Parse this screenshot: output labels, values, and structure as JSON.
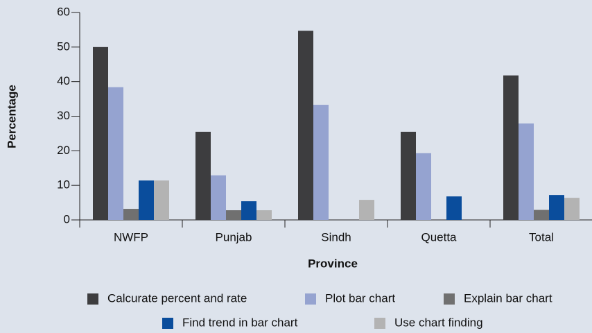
{
  "chart_data": {
    "type": "bar",
    "x_label": "Province",
    "y_label": "Percentage",
    "categories": [
      "NWFP",
      "Punjab",
      "Sindh",
      "Quetta",
      "Total"
    ],
    "series": [
      {
        "name": "Calcurate percent and rate",
        "color": "#3d3d3f",
        "values": [
          50,
          25.5,
          54.7,
          25.5,
          41.8
        ]
      },
      {
        "name": "Plot bar chart",
        "color": "#95a3d0",
        "values": [
          38.4,
          12.9,
          33.3,
          19.3,
          27.9
        ]
      },
      {
        "name": "Explain bar chart",
        "color": "#707070",
        "values": [
          3.2,
          2.8,
          0,
          0,
          2.9
        ]
      },
      {
        "name": "Find trend in bar chart",
        "color": "#0a4d9c",
        "values": [
          11.4,
          5.4,
          0,
          6.8,
          7.2
        ]
      },
      {
        "name": "Use chart finding",
        "color": "#b3b3b3",
        "values": [
          11.4,
          2.8,
          5.8,
          0,
          6.4
        ]
      }
    ],
    "ylim": [
      0,
      60
    ],
    "yticks": [
      0,
      10,
      20,
      30,
      40,
      50,
      60
    ],
    "legend": "bottom"
  }
}
